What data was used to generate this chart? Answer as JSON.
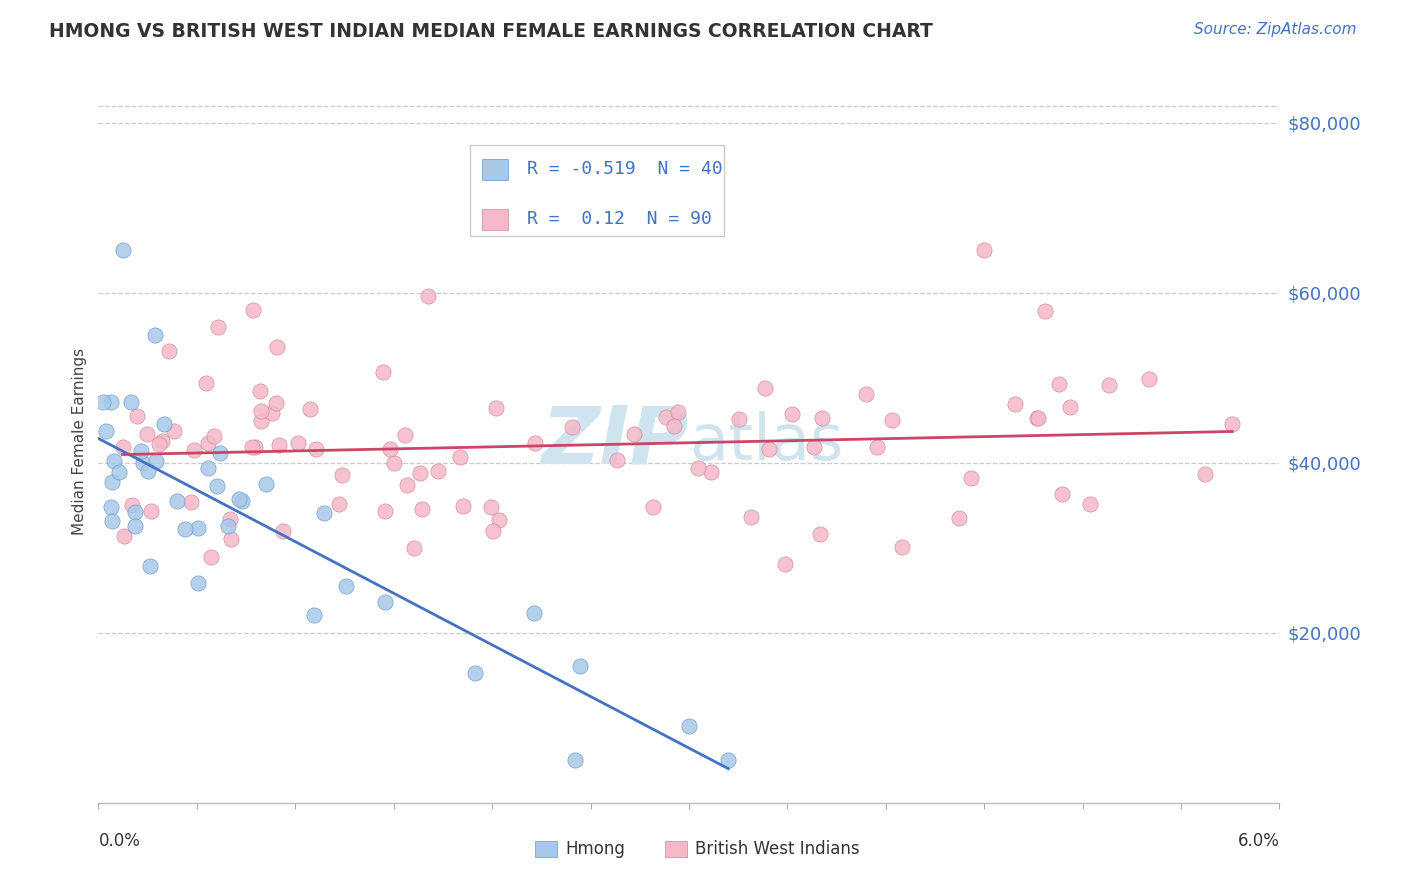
{
  "title": "HMONG VS BRITISH WEST INDIAN MEDIAN FEMALE EARNINGS CORRELATION CHART",
  "source": "Source: ZipAtlas.com",
  "ylabel": "Median Female Earnings",
  "right_yticks": [
    "$20,000",
    "$40,000",
    "$60,000",
    "$80,000"
  ],
  "right_ytick_values": [
    20000,
    40000,
    60000,
    80000
  ],
  "xlim": [
    0.0,
    0.06
  ],
  "ylim": [
    0,
    85000
  ],
  "hmong_color": "#A8C8E8",
  "hmong_edge_color": "#6699CC",
  "bwi_color": "#F5B8C8",
  "bwi_edge_color": "#CC8899",
  "hmong_line_color": "#4472C4",
  "bwi_line_color": "#CC4466",
  "hmong_R": -0.519,
  "hmong_N": 40,
  "bwi_R": 0.12,
  "bwi_N": 90,
  "background_color": "#FFFFFF",
  "grid_color": "#BBBBCC",
  "title_color": "#333333",
  "source_color": "#4472C4",
  "ytick_color": "#4472C4",
  "watermark_color": "#D0E4F0",
  "legend_text_color": "#4472C4"
}
